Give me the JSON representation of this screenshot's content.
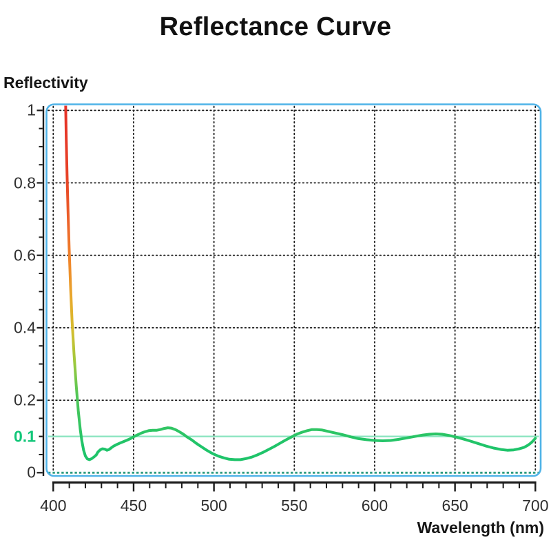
{
  "title": "Reflectance Curve",
  "y_axis": {
    "label": "Reflectivity"
  },
  "x_axis": {
    "label": "Wavelength (nm)"
  },
  "chart_data": {
    "type": "line",
    "title": "Reflectance Curve",
    "xlabel": "Wavelength (nm)",
    "ylabel": "Reflectivity",
    "xlim": [
      400,
      700
    ],
    "ylim": [
      0,
      1
    ],
    "grid": "dotted",
    "x_ticks": [
      {
        "v": 400,
        "label": "400"
      },
      {
        "v": 450,
        "label": "450"
      },
      {
        "v": 500,
        "label": "500"
      },
      {
        "v": 550,
        "label": "550"
      },
      {
        "v": 600,
        "label": "600"
      },
      {
        "v": 650,
        "label": "650"
      },
      {
        "v": 700,
        "label": "700"
      }
    ],
    "x_minor_step": 10,
    "y_ticks": [
      {
        "v": 1,
        "label": "1"
      },
      {
        "v": 0.8,
        "label": "0.8"
      },
      {
        "v": 0.6,
        "label": "0.6"
      },
      {
        "v": 0.4,
        "label": "0.4"
      },
      {
        "v": 0.2,
        "label": "0.2"
      },
      {
        "v": 0.1,
        "label": "0.1",
        "highlight": true
      },
      {
        "v": 0,
        "label": "0"
      }
    ],
    "y_minor_step": 0.05,
    "reference_lines": [
      {
        "y": 0.1,
        "style": "solid",
        "color": "#8ce5c0",
        "label": "0.1",
        "label_color": "#11c678"
      },
      {
        "y": 0,
        "style": "dotted",
        "color": "#2e9b7f"
      }
    ],
    "colors": {
      "plot_border": "#4fb3e8",
      "grid": "#1c1c1c",
      "axis": "#1b1b1b",
      "curve_green": "#1fc46a",
      "highlight_label": "#11c678",
      "curve_gradient": [
        {
          "offset": 0.0,
          "color": "#e63128"
        },
        {
          "offset": 0.2,
          "color": "#e74127"
        },
        {
          "offset": 0.34,
          "color": "#ec6129"
        },
        {
          "offset": 0.46,
          "color": "#f0862b"
        },
        {
          "offset": 0.57,
          "color": "#e7aa2c"
        },
        {
          "offset": 0.66,
          "color": "#d5bd2e"
        },
        {
          "offset": 0.75,
          "color": "#a2c93c"
        },
        {
          "offset": 0.85,
          "color": "#52c757"
        },
        {
          "offset": 1.0,
          "color": "#1fc46a"
        }
      ]
    },
    "series": [
      {
        "name": "reflectance",
        "points": [
          [
            407.6,
            1.05
          ],
          [
            408.1,
            0.92
          ],
          [
            408.6,
            0.82
          ],
          [
            409.2,
            0.72
          ],
          [
            409.9,
            0.62
          ],
          [
            410.7,
            0.52
          ],
          [
            411.7,
            0.42
          ],
          [
            412.9,
            0.33
          ],
          [
            414.3,
            0.24
          ],
          [
            415.6,
            0.17
          ],
          [
            416.8,
            0.12
          ],
          [
            417.8,
            0.088
          ],
          [
            418.9,
            0.062
          ],
          [
            420.0,
            0.046
          ],
          [
            421.2,
            0.038
          ],
          [
            422.5,
            0.036
          ],
          [
            424.0,
            0.039
          ],
          [
            425.5,
            0.044
          ],
          [
            426.8,
            0.049
          ],
          [
            427.8,
            0.057
          ],
          [
            429.2,
            0.063
          ],
          [
            430.6,
            0.066
          ],
          [
            432.0,
            0.065
          ],
          [
            433.4,
            0.062
          ],
          [
            434.8,
            0.064
          ],
          [
            436.2,
            0.069
          ],
          [
            437.8,
            0.074
          ],
          [
            439.6,
            0.078
          ],
          [
            441.6,
            0.082
          ],
          [
            443.8,
            0.086
          ],
          [
            446.0,
            0.09
          ],
          [
            448.0,
            0.094
          ],
          [
            450.0,
            0.099
          ],
          [
            452.3,
            0.104
          ],
          [
            454.6,
            0.109
          ],
          [
            457.0,
            0.113
          ],
          [
            459.4,
            0.116
          ],
          [
            461.8,
            0.117
          ],
          [
            464.2,
            0.117
          ],
          [
            466.6,
            0.119
          ],
          [
            469.0,
            0.122
          ],
          [
            471.3,
            0.124
          ],
          [
            473.5,
            0.123
          ],
          [
            476.0,
            0.119
          ],
          [
            478.5,
            0.113
          ],
          [
            481.0,
            0.106
          ],
          [
            483.5,
            0.098
          ],
          [
            486.0,
            0.091
          ],
          [
            489.0,
            0.081
          ],
          [
            492.0,
            0.072
          ],
          [
            495.5,
            0.062
          ],
          [
            499.0,
            0.053
          ],
          [
            502.5,
            0.046
          ],
          [
            506.0,
            0.041
          ],
          [
            509.5,
            0.037
          ],
          [
            513.0,
            0.036
          ],
          [
            516.5,
            0.036
          ],
          [
            520.0,
            0.039
          ],
          [
            523.5,
            0.043
          ],
          [
            527.0,
            0.049
          ],
          [
            530.5,
            0.056
          ],
          [
            534.0,
            0.064
          ],
          [
            537.5,
            0.072
          ],
          [
            541.0,
            0.081
          ],
          [
            544.5,
            0.09
          ],
          [
            548.0,
            0.098
          ],
          [
            551.5,
            0.106
          ],
          [
            555.0,
            0.112
          ],
          [
            558.0,
            0.116
          ],
          [
            561.0,
            0.119
          ],
          [
            564.0,
            0.119
          ],
          [
            567.0,
            0.118
          ],
          [
            571.0,
            0.114
          ],
          [
            575.0,
            0.11
          ],
          [
            580.0,
            0.105
          ],
          [
            585.0,
            0.099
          ],
          [
            590.0,
            0.094
          ],
          [
            595.0,
            0.091
          ],
          [
            600.0,
            0.089
          ],
          [
            605.0,
            0.088
          ],
          [
            610.0,
            0.089
          ],
          [
            615.0,
            0.092
          ],
          [
            620.0,
            0.096
          ],
          [
            625.0,
            0.1
          ],
          [
            630.0,
            0.104
          ],
          [
            634.0,
            0.106
          ],
          [
            638.0,
            0.107
          ],
          [
            642.0,
            0.106
          ],
          [
            646.0,
            0.103
          ],
          [
            650.0,
            0.099
          ],
          [
            654.5,
            0.094
          ],
          [
            659.0,
            0.088
          ],
          [
            664.0,
            0.081
          ],
          [
            669.0,
            0.074
          ],
          [
            674.0,
            0.068
          ],
          [
            678.5,
            0.064
          ],
          [
            682.5,
            0.062
          ],
          [
            686.5,
            0.063
          ],
          [
            690.0,
            0.066
          ],
          [
            693.0,
            0.07
          ],
          [
            695.5,
            0.076
          ],
          [
            697.5,
            0.083
          ],
          [
            699.0,
            0.09
          ],
          [
            700.0,
            0.095
          ]
        ]
      }
    ]
  }
}
